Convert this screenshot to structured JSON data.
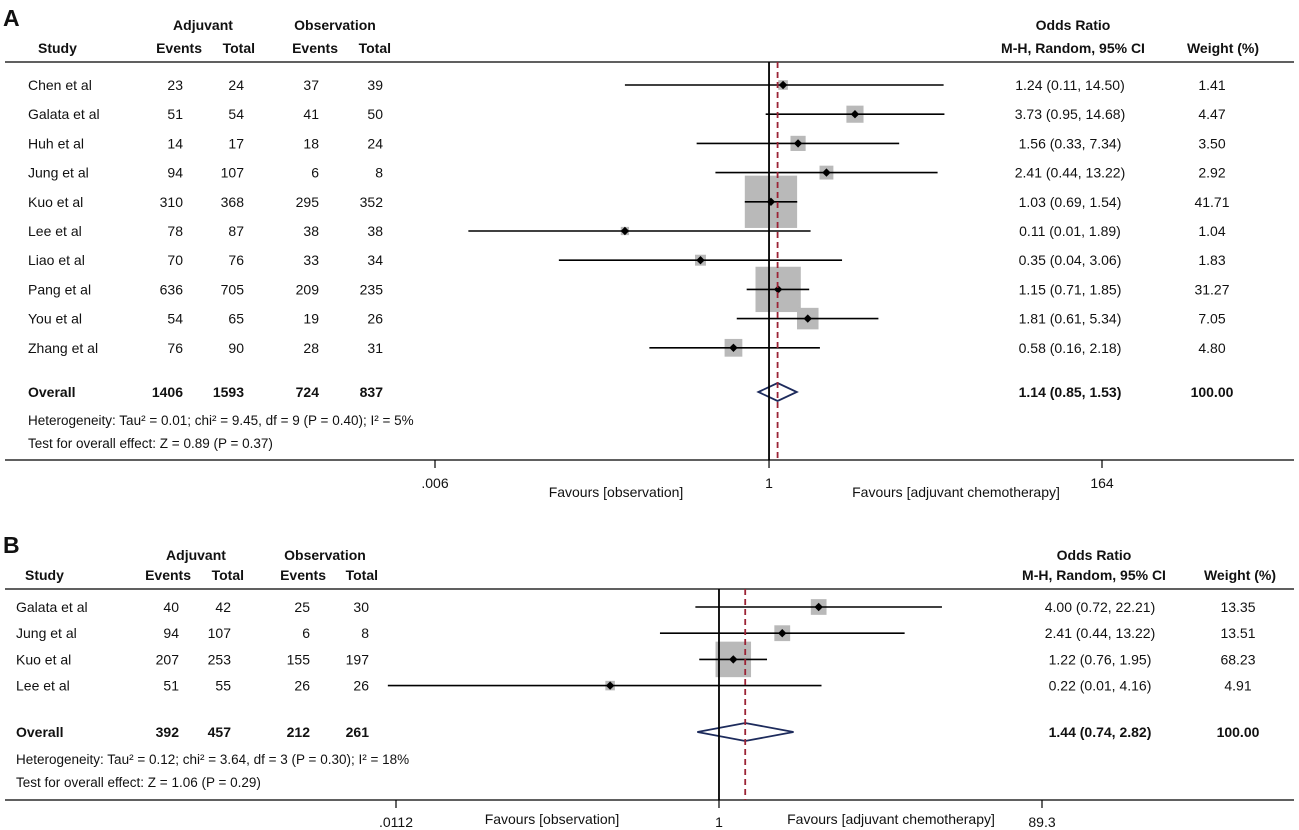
{
  "colors": {
    "box": "#b9b9b9",
    "diamond_stroke": "#1d2b5c",
    "pooled_line": "#9b2335",
    "axis": "#000000"
  },
  "chart_data": [
    {
      "type": "forest",
      "panel": "A",
      "headers": {
        "study": "Study",
        "group1": "Adjuvant",
        "group2": "Observation",
        "events": "Events",
        "total": "Total",
        "effect_title": "Odds Ratio",
        "effect_subtitle": "M-H, Random, 95% CI",
        "weight": "Weight (%)"
      },
      "xscale": "log",
      "xlim": [
        0.006,
        164
      ],
      "xticks": [
        ".006",
        "1",
        "164"
      ],
      "xtick_values": [
        0.006,
        1,
        164
      ],
      "favours_left": "Favours [observation]",
      "favours_right": "Favours [adjuvant chemotherapy]",
      "studies": [
        {
          "name": "Chen et al",
          "e1": "23",
          "t1": "24",
          "e2": "37",
          "t2": "39",
          "or": 1.24,
          "lo": 0.11,
          "hi": 14.5,
          "ci": "1.24 (0.11, 14.50)",
          "weight": 1.41,
          "weight_label": "1.41"
        },
        {
          "name": "Galata et al",
          "e1": "51",
          "t1": "54",
          "e2": "41",
          "t2": "50",
          "or": 3.73,
          "lo": 0.95,
          "hi": 14.68,
          "ci": "3.73 (0.95, 14.68)",
          "weight": 4.47,
          "weight_label": "4.47"
        },
        {
          "name": "Huh et al",
          "e1": "14",
          "t1": "17",
          "e2": "18",
          "t2": "24",
          "or": 1.56,
          "lo": 0.33,
          "hi": 7.34,
          "ci": "1.56 (0.33, 7.34)",
          "weight": 3.5,
          "weight_label": "3.50"
        },
        {
          "name": "Jung et al",
          "e1": "94",
          "t1": "107",
          "e2": "6",
          "t2": "8",
          "or": 2.41,
          "lo": 0.44,
          "hi": 13.22,
          "ci": "2.41 (0.44, 13.22)",
          "weight": 2.92,
          "weight_label": "2.92"
        },
        {
          "name": "Kuo et al",
          "e1": "310",
          "t1": "368",
          "e2": "295",
          "t2": "352",
          "or": 1.03,
          "lo": 0.69,
          "hi": 1.54,
          "ci": "1.03 (0.69, 1.54)",
          "weight": 41.71,
          "weight_label": "41.71"
        },
        {
          "name": "Lee et al",
          "e1": "78",
          "t1": "87",
          "e2": "38",
          "t2": "38",
          "or": 0.11,
          "lo": 0.01,
          "hi": 1.89,
          "ci": "0.11 (0.01, 1.89)",
          "weight": 1.04,
          "weight_label": "1.04"
        },
        {
          "name": "Liao et al",
          "e1": "70",
          "t1": "76",
          "e2": "33",
          "t2": "34",
          "or": 0.35,
          "lo": 0.04,
          "hi": 3.06,
          "ci": "0.35 (0.04, 3.06)",
          "weight": 1.83,
          "weight_label": "1.83"
        },
        {
          "name": "Pang et al",
          "e1": "636",
          "t1": "705",
          "e2": "209",
          "t2": "235",
          "or": 1.15,
          "lo": 0.71,
          "hi": 1.85,
          "ci": "1.15 (0.71, 1.85)",
          "weight": 31.27,
          "weight_label": "31.27"
        },
        {
          "name": "You et al",
          "e1": "54",
          "t1": "65",
          "e2": "19",
          "t2": "26",
          "or": 1.81,
          "lo": 0.61,
          "hi": 5.34,
          "ci": "1.81 (0.61, 5.34)",
          "weight": 7.05,
          "weight_label": "7.05"
        },
        {
          "name": "Zhang et al",
          "e1": "76",
          "t1": "90",
          "e2": "28",
          "t2": "31",
          "or": 0.58,
          "lo": 0.16,
          "hi": 2.18,
          "ci": "0.58 (0.16, 2.18)",
          "weight": 4.8,
          "weight_label": "4.80"
        }
      ],
      "overall": {
        "name": "Overall",
        "e1": "1406",
        "t1": "1593",
        "e2": "724",
        "t2": "837",
        "or": 1.14,
        "lo": 0.85,
        "hi": 1.53,
        "ci": "1.14 (0.85, 1.53)",
        "weight_label": "100.00"
      },
      "heterogeneity": "Heterogeneity: Tau² = 0.01; chi² = 9.45, df = 9 (P = 0.40); I² = 5%",
      "overall_test": "Test for overall effect: Z = 0.89 (P = 0.37)"
    },
    {
      "type": "forest",
      "panel": "B",
      "headers": {
        "study": "Study",
        "group1": "Adjuvant",
        "group2": "Observation",
        "events": "Events",
        "total": "Total",
        "effect_title": "Odds Ratio",
        "effect_subtitle": "M-H, Random, 95% CI",
        "weight": "Weight (%)"
      },
      "xscale": "log",
      "xlim": [
        0.0112,
        89.3
      ],
      "xticks": [
        ".0112",
        "1",
        "89.3"
      ],
      "xtick_values": [
        0.0112,
        1,
        89.3
      ],
      "favours_left": "Favours [observation]",
      "favours_right": "Favours [adjuvant chemotherapy]",
      "studies": [
        {
          "name": "Galata et al",
          "e1": "40",
          "t1": "42",
          "e2": "25",
          "t2": "30",
          "or": 4.0,
          "lo": 0.72,
          "hi": 22.21,
          "ci": "4.00 (0.72, 22.21)",
          "weight": 13.35,
          "weight_label": "13.35"
        },
        {
          "name": "Jung et al",
          "e1": "94",
          "t1": "107",
          "e2": "6",
          "t2": "8",
          "or": 2.41,
          "lo": 0.44,
          "hi": 13.22,
          "ci": "2.41 (0.44, 13.22)",
          "weight": 13.51,
          "weight_label": "13.51"
        },
        {
          "name": "Kuo et al",
          "e1": "207",
          "t1": "253",
          "e2": "155",
          "t2": "197",
          "or": 1.22,
          "lo": 0.76,
          "hi": 1.95,
          "ci": "1.22 (0.76, 1.95)",
          "weight": 68.23,
          "weight_label": "68.23"
        },
        {
          "name": "Lee et al",
          "e1": "51",
          "t1": "55",
          "e2": "26",
          "t2": "26",
          "or": 0.22,
          "lo": 0.01,
          "hi": 4.16,
          "ci": "0.22 (0.01, 4.16)",
          "weight": 4.91,
          "weight_label": "4.91"
        }
      ],
      "overall": {
        "name": "Overall",
        "e1": "392",
        "t1": "457",
        "e2": "212",
        "t2": "261",
        "or": 1.44,
        "lo": 0.74,
        "hi": 2.82,
        "ci": "1.44 (0.74, 2.82)",
        "weight_label": "100.00"
      },
      "heterogeneity": "Heterogeneity: Tau² = 0.12; chi² = 3.64, df = 3 (P = 0.30); I² = 18%",
      "overall_test": "Test for overall effect: Z = 1.06 (P = 0.29)"
    }
  ]
}
